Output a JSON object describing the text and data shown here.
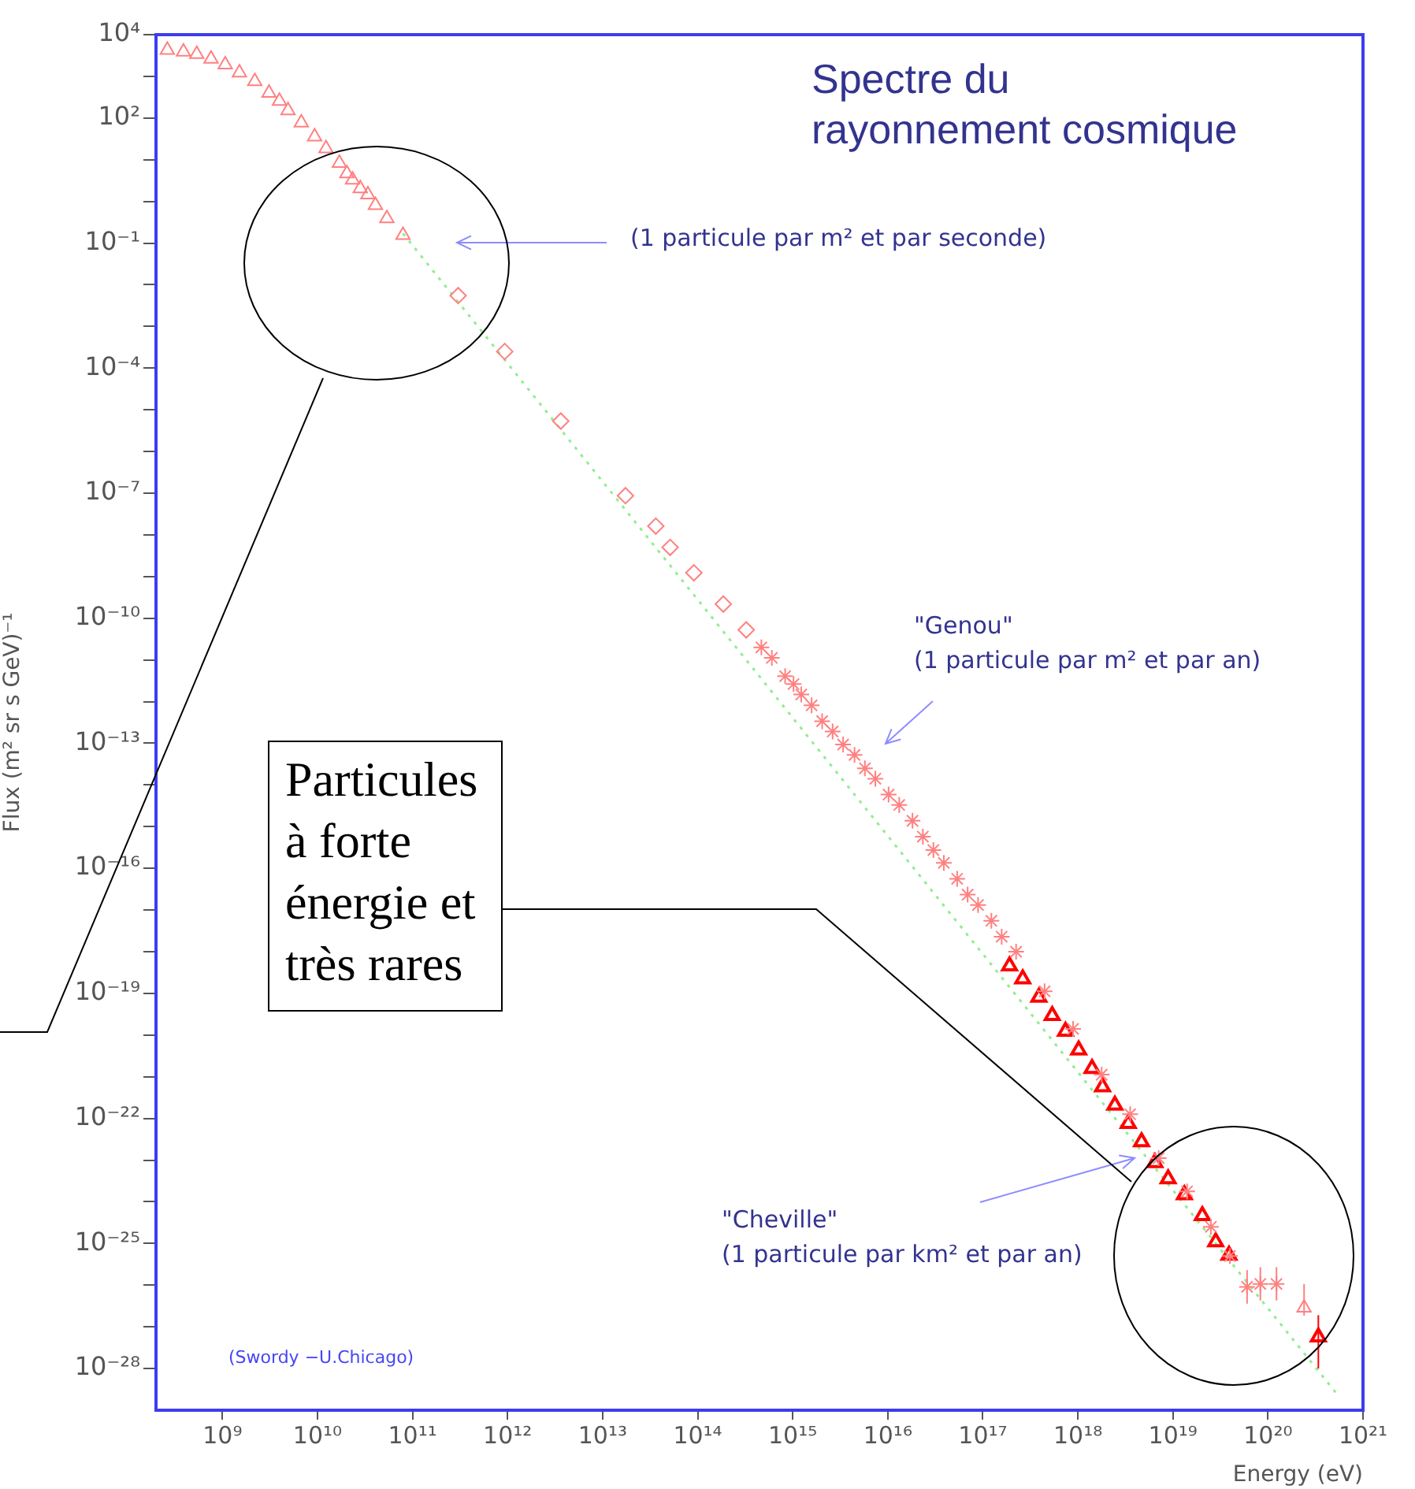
{
  "chart_data": {
    "type": "scatter",
    "title": "Spectre du rayonnement cosmique",
    "xlabel": "Energy (eV)",
    "ylabel": "Flux (m² sr s GeV)⁻¹",
    "log": "xy",
    "grid": false,
    "legend": false,
    "xlim": [
      200000000.0,
      1e+21
    ],
    "xticks": [
      {
        "value": 1000000000.0,
        "label": "10⁹"
      },
      {
        "value": 10000000000.0,
        "label": "10¹⁰"
      },
      {
        "value": 100000000000.0,
        "label": "10¹¹"
      },
      {
        "value": 1000000000000.0,
        "label": "10¹²"
      },
      {
        "value": 10000000000000.0,
        "label": "10¹³"
      },
      {
        "value": 100000000000000.0,
        "label": "10¹⁴"
      },
      {
        "value": 1000000000000000.0,
        "label": "10¹⁵"
      },
      {
        "value": 1e+16,
        "label": "10¹⁶"
      },
      {
        "value": 1e+17,
        "label": "10¹⁷"
      },
      {
        "value": 1e+18,
        "label": "10¹⁸"
      },
      {
        "value": 1e+19,
        "label": "10¹⁹"
      },
      {
        "value": 1e+20,
        "label": "10²⁰"
      },
      {
        "value": 1e+21,
        "label": "10²¹"
      }
    ],
    "ylim": [
      1e-29,
      10000.0
    ],
    "yticks": [
      {
        "value": 10000.0,
        "label": "10⁴"
      },
      {
        "value": 1000.0,
        "label": null
      },
      {
        "value": 100.0,
        "label": "10²"
      },
      {
        "value": 10.0,
        "label": null
      },
      {
        "value": 1,
        "label": null
      },
      {
        "value": 0.1,
        "label": "10⁻¹"
      },
      {
        "value": 0.01,
        "label": null
      },
      {
        "value": 0.001,
        "label": null
      },
      {
        "value": 0.0001,
        "label": "10⁻⁴"
      },
      {
        "value": 1e-05,
        "label": null
      },
      {
        "value": 1e-06,
        "label": null
      },
      {
        "value": 1e-07,
        "label": "10⁻⁷"
      },
      {
        "value": 1e-08,
        "label": null
      },
      {
        "value": 1e-09,
        "label": null
      },
      {
        "value": 1e-10,
        "label": "10⁻¹⁰"
      },
      {
        "value": 1e-11,
        "label": null
      },
      {
        "value": 1e-12,
        "label": null
      },
      {
        "value": 1e-13,
        "label": "10⁻¹³"
      },
      {
        "value": 1e-14,
        "label": null
      },
      {
        "value": 1e-15,
        "label": null
      },
      {
        "value": 1e-16,
        "label": "10⁻¹⁶"
      },
      {
        "value": 1e-17,
        "label": null
      },
      {
        "value": 1e-18,
        "label": null
      },
      {
        "value": 1e-19,
        "label": "10⁻¹⁹"
      },
      {
        "value": 1e-20,
        "label": null
      },
      {
        "value": 1e-21,
        "label": null
      },
      {
        "value": 1e-22,
        "label": "10⁻²²"
      },
      {
        "value": 1e-23,
        "label": null
      },
      {
        "value": 1e-24,
        "label": null
      },
      {
        "value": 1e-25,
        "label": "10⁻²⁵"
      },
      {
        "value": 1e-26,
        "label": null
      },
      {
        "value": 1e-27,
        "label": null
      },
      {
        "value": 1e-28,
        "label": "10⁻²⁸"
      }
    ],
    "series": [
      {
        "color": "#ff8080",
        "marker": "triangle",
        "x": [
          263000000.0,
          389000000.0,
          537000000.0,
          759000000.0,
          1070000000.0,
          1510000000.0,
          2190000000.0,
          3090000000.0,
          3980000000.0,
          4900000000.0,
          6760000000.0,
          9330000000.0,
          12300000000.0,
          17000000000.0,
          20400000000.0,
          23400000000.0,
          28200000000.0,
          33900000000.0,
          40700000000.0,
          53700000000.0,
          79400000000.0,
          2.4e+20
        ],
        "values": [
          4270,
          3890,
          3390,
          2630,
          1910,
          1230,
          759,
          398,
          257,
          151,
          77.6,
          35.5,
          18.6,
          8.32,
          4.68,
          3.31,
          2.04,
          1.45,
          0.813,
          0.389,
          0.155,
          2.88e-27
        ],
        "errors": [
          null,
          null,
          null,
          null,
          null,
          null,
          null,
          null,
          null,
          null,
          null,
          null,
          null,
          null,
          null,
          null,
          null,
          null,
          null,
          null,
          null,
          [
            1.86e-27,
            1.07e-26
          ]
        ]
      },
      {
        "color": "#ff8080",
        "marker": "diamond",
        "x": [
          302000000000.0,
          933000000000.0,
          3630000000000.0,
          17400000000000.0,
          36300000000000.0,
          51300000000000.0,
          91200000000000.0,
          186000000000000.0,
          324000000000000.0
        ],
        "values": [
          0.0055,
          0.000251,
          5.37e-06,
          8.71e-08,
          1.62e-08,
          5.01e-09,
          1.23e-09,
          2.19e-10,
          5.25e-11
        ]
      },
      {
        "color": "#ff8080",
        "marker": "cross",
        "x": [
          468000000000000.0,
          603000000000000.0,
          832000000000000.0,
          1020000000000000.0,
          1230000000000000.0,
          1580000000000000.0,
          2040000000000000.0,
          2630000000000000.0,
          3390000000000000.0,
          4470000000000000.0,
          5750000000000000.0,
          7410000000000000.0,
          1.02e+16,
          1.32e+16,
          1.82e+16,
          2.34e+16,
          3.02e+16,
          3.89e+16,
          5.37e+16,
          6.92e+16,
          8.91e+16,
          1.23e+17,
          1.58e+17,
          2.24e+17,
          4.47e+17,
          8.91e+17,
          1.78e+18,
          3.55e+18,
          7.08e+18,
          1.41e+19,
          2.51e+19,
          3.98e+19,
          6.03e+19,
          8.32e+19,
          1.23e+20
        ],
        "values": [
          2e-11,
          1.12e-11,
          4.07e-12,
          2.63e-12,
          1.48e-12,
          8.13e-13,
          3.39e-13,
          1.91e-13,
          9.33e-14,
          5.25e-14,
          2.51e-14,
          1.41e-14,
          5.89e-15,
          3.31e-15,
          1.38e-15,
          5.75e-16,
          2.75e-16,
          1.35e-16,
          5.62e-17,
          2.34e-17,
          1.32e-17,
          5.5e-18,
          2.29e-18,
          1e-18,
          1.12e-19,
          1.41e-20,
          1.12e-21,
          1.26e-22,
          1.12e-23,
          1.78e-24,
          2.51e-25,
          5.01e-26,
          9.12e-27,
          1.07e-26,
          1.07e-26
        ],
        "errors": [
          null,
          null,
          null,
          null,
          null,
          null,
          null,
          null,
          null,
          null,
          null,
          null,
          null,
          null,
          null,
          null,
          null,
          null,
          null,
          null,
          null,
          null,
          null,
          null,
          null,
          null,
          null,
          null,
          null,
          null,
          null,
          null,
          [
            3.6e-27,
            2.3e-26
          ],
          [
            4.3e-27,
            2.7e-26
          ],
          [
            4.3e-27,
            2.7e-26
          ]
        ]
      },
      {
        "color": "#ff0000",
        "marker": "triangle",
        "x": [
          1.91e+17,
          2.63e+17,
          3.89e+17,
          5.37e+17,
          7.41e+17,
          1.02e+18,
          1.41e+18,
          1.82e+18,
          2.45e+18,
          3.39e+18,
          4.68e+18,
          6.46e+18,
          8.91e+18,
          1.32e+19,
          2.04e+19,
          2.82e+19,
          3.89e+19,
          3.39e+20
        ],
        "values": [
          4.57e-19,
          2.24e-19,
          8.13e-20,
          2.95e-20,
          1.23e-20,
          4.37e-21,
          1.58e-21,
          5.75e-22,
          2.09e-22,
          7.59e-23,
          2.75e-23,
          8.71e-24,
          3.55e-24,
          1.48e-24,
          4.68e-25,
          1.1e-25,
          5.25e-26,
          5.75e-28
        ],
        "errors": [
          null,
          null,
          null,
          null,
          null,
          null,
          null,
          null,
          null,
          null,
          null,
          null,
          null,
          null,
          null,
          null,
          null,
          [
            1e-28,
            1.9e-27
          ]
        ]
      },
      {
        "type": "line",
        "color": "#90ee90",
        "marker": "none",
        "line_style": "dotted",
        "x": [
          79400000000.0,
          5.62e+20
        ],
        "values": [
          0.17,
          2.09e-29
        ]
      }
    ],
    "annotations": [
      "\"Genou\"",
      "(1 particule par m² et par an)",
      "(1 particule par m² et par seconde)",
      "\"Cheville\"",
      "(1 particule par km² et par an)",
      "(Swordy −U.Chicago)",
      "Particules à forte énergie et très rares"
    ]
  }
}
